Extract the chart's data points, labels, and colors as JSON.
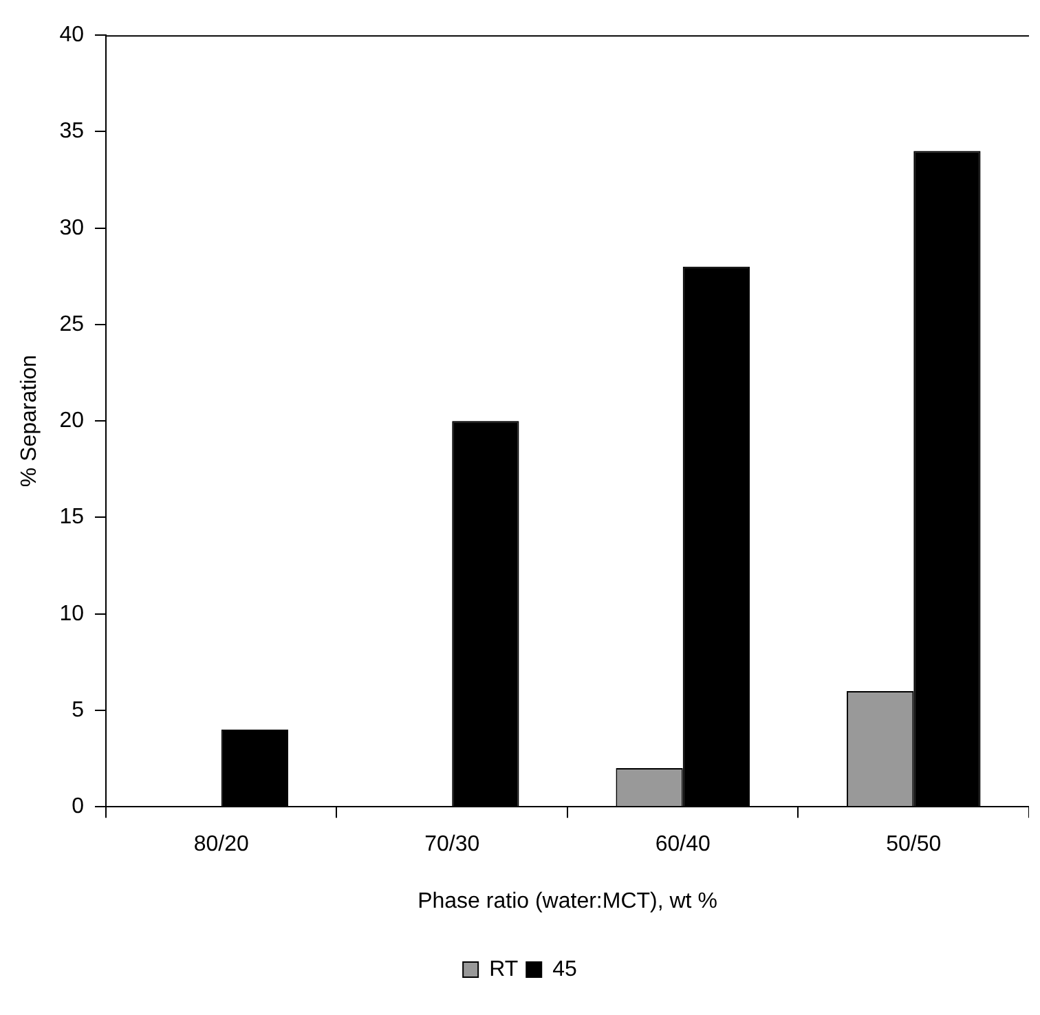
{
  "chart_data": {
    "type": "bar",
    "xlabel": "Phase ratio (water:MCT), wt %",
    "ylabel": "% Separation",
    "categories": [
      "80/20",
      "70/30",
      "60/40",
      "50/50"
    ],
    "series": [
      {
        "name": "RT",
        "color": "#999999",
        "values": [
          0,
          0,
          2,
          6
        ]
      },
      {
        "name": "45",
        "color": "#000000",
        "values": [
          4,
          20,
          28,
          34
        ]
      }
    ],
    "ylim": [
      0,
      40
    ],
    "yticks": [
      0,
      5,
      10,
      15,
      20,
      25,
      30,
      35,
      40
    ],
    "grid": false,
    "legend": "bottom"
  }
}
